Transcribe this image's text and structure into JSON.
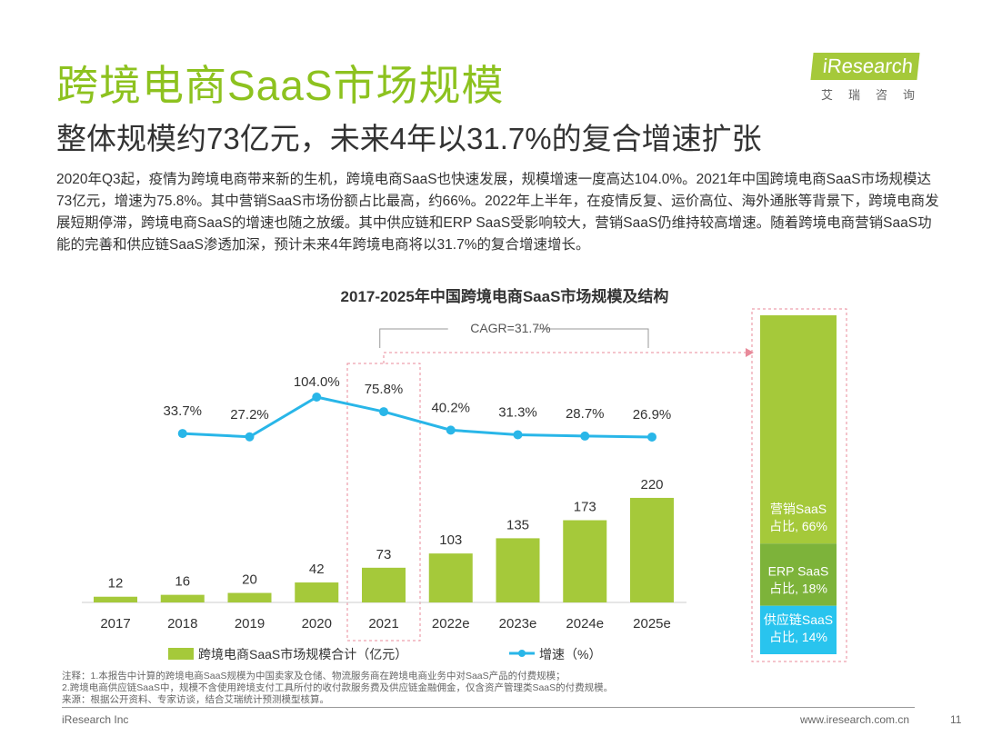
{
  "header": {
    "title": "跨境电商SaaS市场规模",
    "subtitle": "整体规模约73亿元，未来4年以31.7%的复合增速扩张",
    "logo_text": "iResearch",
    "logo_cn": "艾瑞咨询"
  },
  "body_text": "2020年Q3起，疫情为跨境电商带来新的生机，跨境电商SaaS也快速发展，规模增速一度高达104.0%。2021年中国跨境电商SaaS市场规模达73亿元，增速为75.8%。其中营销SaaS市场份额占比最高，约66%。2022年上半年，在疫情反复、运价高位、海外通胀等背景下，跨境电商发展短期停滞，跨境电商SaaS的增速也随之放缓。其中供应链和ERP SaaS受影响较大，营销SaaS仍维持较高增速。随着跨境电商营销SaaS功能的完善和供应链SaaS渗透加深，预计未来4年跨境电商将以31.7%的复合增速增长。",
  "chart_data": {
    "type": "bar+line",
    "title": "2017-2025年中国跨境电商SaaS市场规模及结构",
    "categories": [
      "2017",
      "2018",
      "2019",
      "2020",
      "2021",
      "2022e",
      "2023e",
      "2024e",
      "2025e"
    ],
    "series": [
      {
        "name": "跨境电商SaaS市场规模合计（亿元）",
        "type": "bar",
        "values": [
          12,
          16,
          20,
          42,
          73,
          103,
          135,
          173,
          220
        ],
        "color": "#a5c93a"
      },
      {
        "name": "增速（%）",
        "type": "line",
        "values": [
          null,
          33.7,
          27.2,
          104.0,
          75.8,
          40.2,
          31.3,
          28.7,
          26.9
        ],
        "labels": [
          "",
          "33.7%",
          "27.2%",
          "104.0%",
          "75.8%",
          "40.2%",
          "31.3%",
          "28.7%",
          "26.9%"
        ],
        "color": "#29b6e8"
      }
    ],
    "annotation": "CAGR=31.7%",
    "highlight": "2021",
    "structure_2021": [
      {
        "name": "营销SaaS",
        "label": "占比, 66%",
        "value": 66,
        "color": "#a5c93a"
      },
      {
        "name": "ERP SaaS",
        "label": "占比, 18%",
        "value": 18,
        "color": "#7db33a"
      },
      {
        "name": "供应链SaaS",
        "label": "占比, 14%",
        "value": 14,
        "color": "#29c4ee"
      }
    ]
  },
  "notes": [
    "注释：1.本报告中计算的跨境电商SaaS规模为中国卖家及仓储、物流服务商在跨境电商业务中对SaaS产品的付费规模；",
    "2.跨境电商供应链SaaS中，规模不含使用跨境支付工具所付的收付款服务费及供应链金融佣金，仅含资产管理类SaaS的付费规模。",
    "来源：根据公开资料、专家访谈，结合艾瑞统计预测模型核算。"
  ],
  "footer": {
    "left": "iResearch Inc",
    "right": "www.iresearch.com.cn",
    "page": "11"
  }
}
